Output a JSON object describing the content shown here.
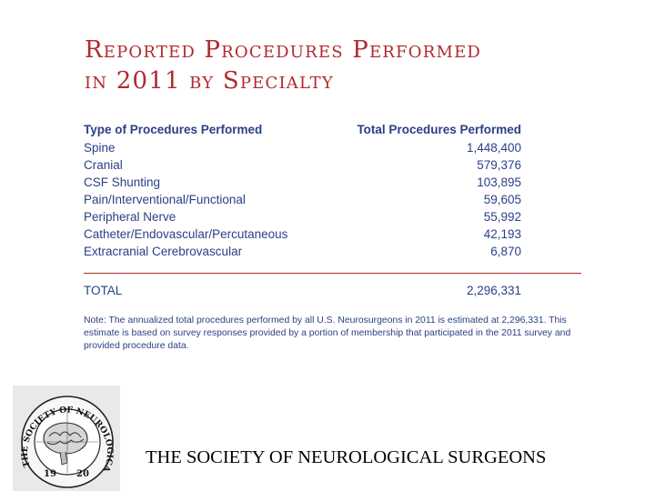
{
  "title": {
    "line1": "Reported Procedures Performed",
    "line2": "in 2011 by Specialty"
  },
  "table": {
    "header": {
      "col1": "Type of Procedures Performed",
      "col2": "Total Procedures Performed"
    },
    "rows": [
      {
        "type": "Spine",
        "total": "1,448,400"
      },
      {
        "type": "Cranial",
        "total": "579,376"
      },
      {
        "type": "CSF Shunting",
        "total": "103,895"
      },
      {
        "type": "Pain/Interventional/Functional",
        "total": "59,605"
      },
      {
        "type": "Peripheral Nerve",
        "total": "55,992"
      },
      {
        "type": "Catheter/Endovascular/Percutaneous",
        "total": "42,193"
      },
      {
        "type": "Extracranial Cerebrovascular",
        "total": "6,870"
      }
    ],
    "total": {
      "label": "TOTAL",
      "value": "2,296,331"
    }
  },
  "note": {
    "line1": "Note: The annualized total procedures performed by all U.S. Neurosurgeons in 2011 is estimated at 2,296,331.  This",
    "line2": "estimate is based on survey responses provided by a portion of membership that participated in the 2011 survey and",
    "line3": "provided procedure data."
  },
  "logo": {
    "arc_text": "THE SOCIETY OF NEUROLOGICAL SURGEONS",
    "year_left": "19",
    "year_right": "20"
  },
  "footer": {
    "text": "THE SOCIETY OF NEUROLOGICAL SURGEONS"
  },
  "colors": {
    "title": "#b02a2f",
    "table_text": "#2a3f87",
    "rule": "#b02a2f"
  }
}
